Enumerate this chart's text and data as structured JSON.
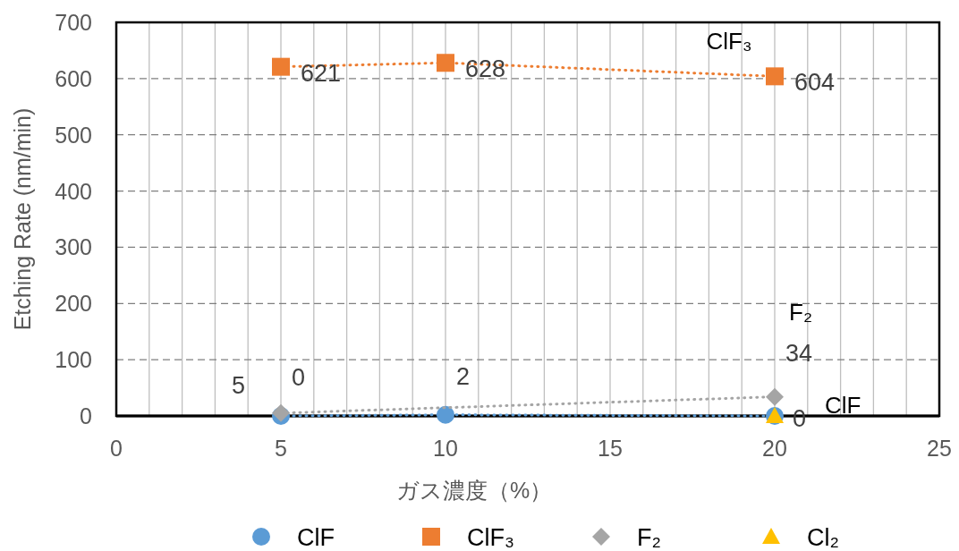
{
  "chart_data": {
    "type": "line",
    "xlabel": "ガス濃度（%）",
    "ylabel": "Etching Rate (nm/min)",
    "xlim": [
      0,
      25
    ],
    "ylim": [
      0,
      700
    ],
    "xticks": [
      0,
      {
        "value": 1,
        "label": null
      },
      {
        "value": 2,
        "label": null
      },
      {
        "value": 3,
        "label": null
      },
      {
        "value": 4,
        "label": null
      },
      5,
      {
        "value": 6,
        "label": null
      },
      {
        "value": 7,
        "label": null
      },
      {
        "value": 8,
        "label": null
      },
      {
        "value": 9,
        "label": null
      },
      10,
      {
        "value": 11,
        "label": null
      },
      {
        "value": 12,
        "label": null
      },
      {
        "value": 13,
        "label": null
      },
      {
        "value": 14,
        "label": null
      },
      15,
      {
        "value": 16,
        "label": null
      },
      {
        "value": 17,
        "label": null
      },
      {
        "value": 18,
        "label": null
      },
      {
        "value": 19,
        "label": null
      },
      20,
      {
        "value": 21,
        "label": null
      },
      {
        "value": 22,
        "label": null
      },
      {
        "value": 23,
        "label": null
      },
      {
        "value": 24,
        "label": null
      },
      25
    ],
    "yticks": [
      0,
      100,
      200,
      300,
      400,
      500,
      600,
      700
    ],
    "grid": true,
    "legend": "bottom",
    "line_style": "dotted",
    "series": [
      {
        "name": "ClF",
        "color": "#5b9bd5",
        "marker": "circle",
        "x": [
          5,
          10,
          20
        ],
        "values": [
          0,
          2,
          0
        ],
        "value_labels": [
          "0",
          "2",
          "0"
        ]
      },
      {
        "name": "ClF₃",
        "color": "#ed7d31",
        "marker": "square",
        "x": [
          5,
          10,
          20
        ],
        "values": [
          621,
          628,
          604
        ],
        "value_labels": [
          "621",
          "628",
          "604"
        ]
      },
      {
        "name": "F₂",
        "color": "#a5a5a5",
        "marker": "diamond",
        "x": [
          5,
          20
        ],
        "values": [
          5,
          34
        ],
        "value_labels": [
          "5",
          "34"
        ]
      },
      {
        "name": "Cl₂",
        "color": "#ffc000",
        "marker": "triangle",
        "x": [
          20
        ],
        "values": [
          0
        ]
      }
    ],
    "annotations": [
      "ClF₃",
      "F₂",
      "ClF"
    ]
  }
}
